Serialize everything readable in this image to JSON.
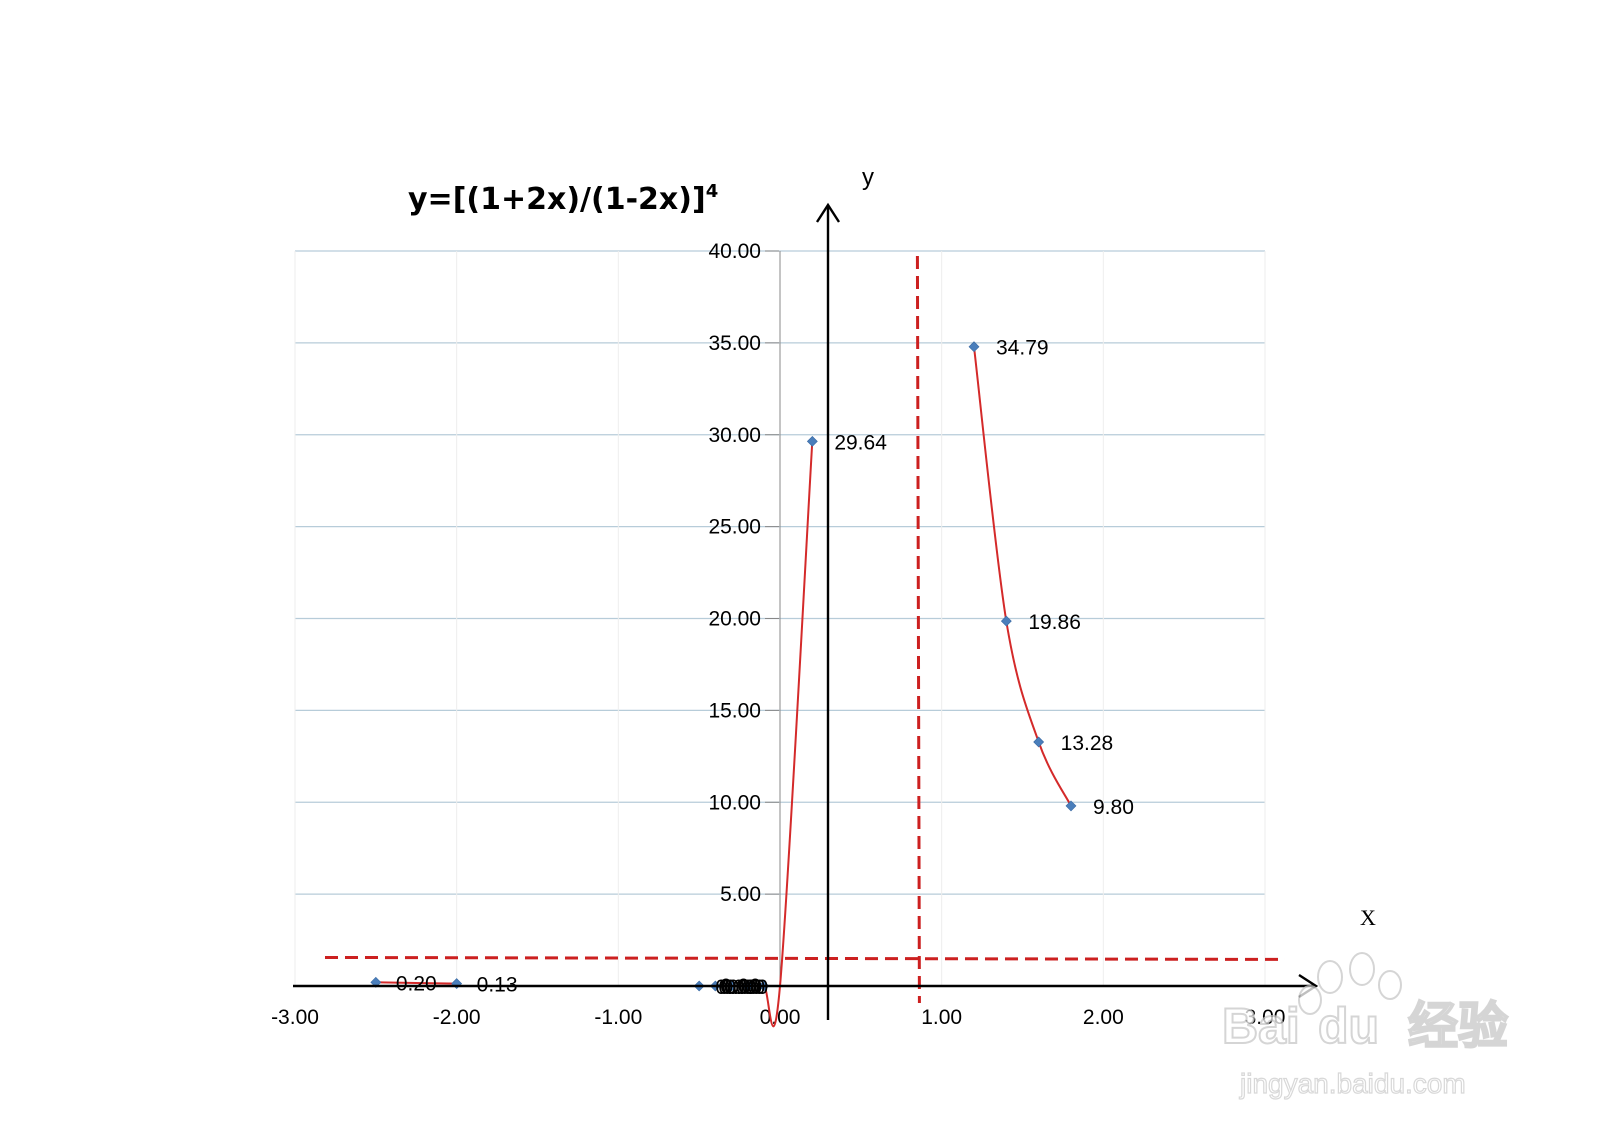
{
  "chart_data": {
    "type": "scatter",
    "title": "y=[(1+2x)/(1-2x)]",
    "title_superscript": "4",
    "xlabel": "X",
    "ylabel": "y",
    "xlim": [
      -3,
      3
    ],
    "ylim": [
      0,
      40
    ],
    "grid": "horizontal",
    "legend": "none",
    "x_ticks": [
      "-3.00",
      "-2.00",
      "-1.00",
      "0.00",
      "1.00",
      "2.00",
      "3.00"
    ],
    "y_ticks": [
      "0.00",
      "5.00",
      "10.00",
      "15.00",
      "20.00",
      "25.00",
      "30.00",
      "35.00",
      "40.00"
    ],
    "series": [
      {
        "segments": [
          {
            "points": [
              {
                "x": -2.5,
                "y": 0.2,
                "label": "0.20"
              },
              {
                "x": -2.0,
                "y": 0.13,
                "label": "0.13"
              }
            ]
          },
          {
            "points": [
              {
                "x": -0.5,
                "y": 0.0,
                "label": "0.00"
              },
              {
                "x": -0.4,
                "y": 0.0,
                "label": "0.00"
              },
              {
                "x": -0.3,
                "y": 0.0,
                "label": "0.00"
              },
              {
                "x": -0.2,
                "y": 0.0,
                "label": "0.00"
              },
              {
                "x": -0.1,
                "y": 0.0,
                "label": "0.00"
              },
              {
                "x": 0.0,
                "y": 0.0,
                "label": ""
              },
              {
                "x": 0.2,
                "y": 29.64,
                "label": "29.64"
              }
            ]
          },
          {
            "points": [
              {
                "x": 1.2,
                "y": 34.79,
                "label": "34.79"
              },
              {
                "x": 1.4,
                "y": 19.86,
                "label": "19.86"
              },
              {
                "x": 1.6,
                "y": 13.28,
                "label": "13.28"
              },
              {
                "x": 1.8,
                "y": 9.8,
                "label": "9.80"
              }
            ]
          }
        ]
      }
    ],
    "asymptotes": [
      {
        "orientation": "vertical",
        "x": 0.85
      },
      {
        "orientation": "horizontal",
        "y": 1.5
      }
    ],
    "colors": {
      "curve": "#d42a2a",
      "marker": "#4a7ebb",
      "asymptote": "#cc2020",
      "grid": "#b7ccd9",
      "axis": "#000000"
    }
  },
  "watermark": {
    "brand": "Bai",
    "brand_du": "du",
    "cn": "经验",
    "url": "jingyan.baidu.com"
  }
}
